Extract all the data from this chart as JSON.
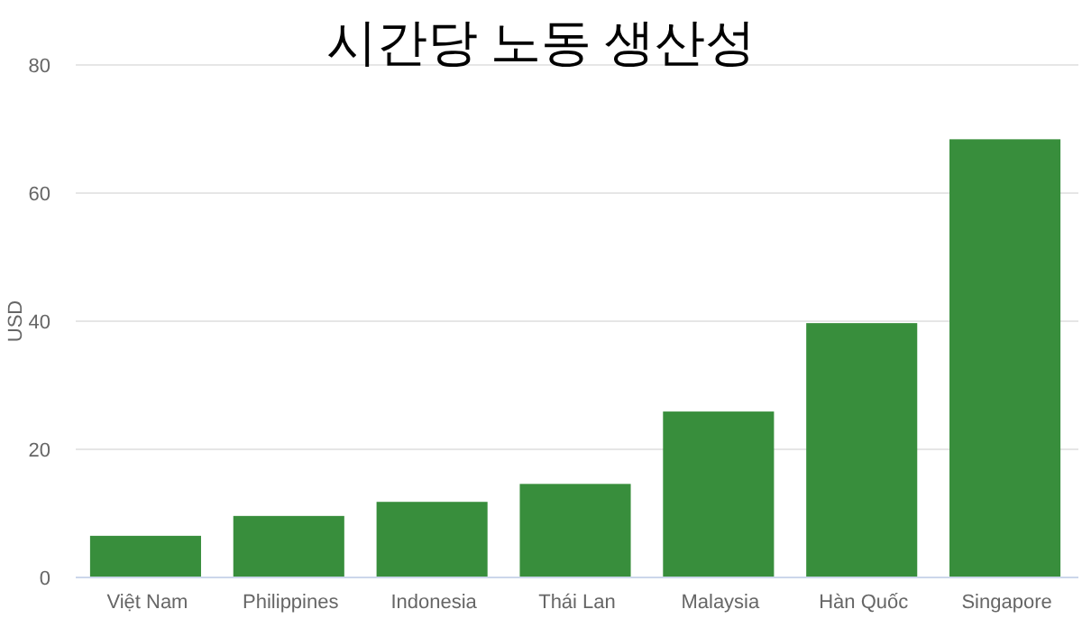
{
  "chart_data": {
    "type": "bar",
    "title": "시간당 노동 생산성",
    "ylabel": "USD",
    "categories": [
      "Việt Nam",
      "Philippines",
      "Indonesia",
      "Thái Lan",
      "Malaysia",
      "Hàn Quốc",
      "Singapore"
    ],
    "values": [
      6.5,
      9.6,
      11.8,
      14.6,
      25.9,
      39.7,
      68.4
    ],
    "color": "#388e3c",
    "ylim": [
      0,
      80
    ],
    "yticks": [
      0,
      20,
      40,
      60,
      80
    ],
    "grid": "y"
  }
}
